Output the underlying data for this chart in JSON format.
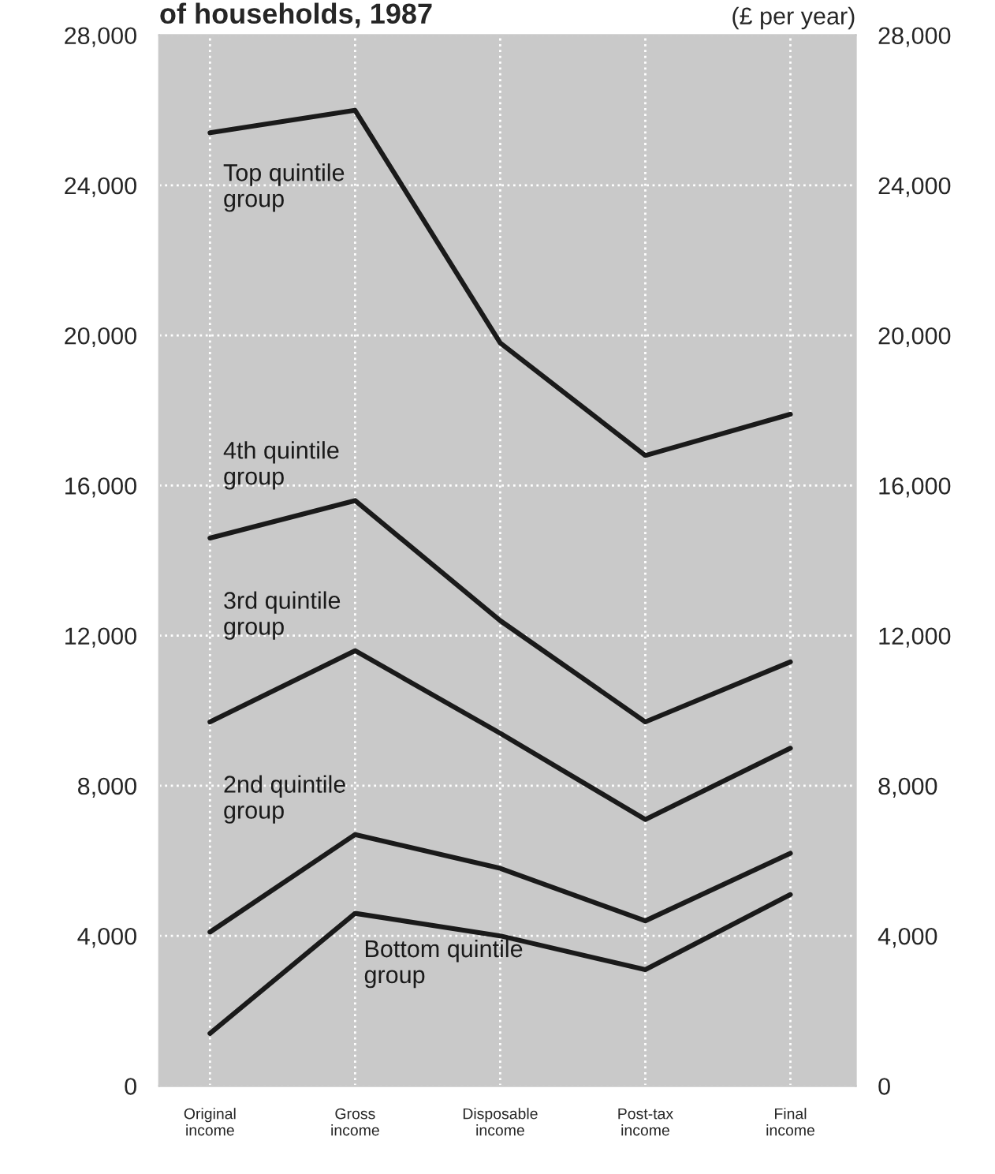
{
  "chart_data": {
    "type": "line",
    "title": "of households, 1987",
    "annotations": [
      "(£ per year)"
    ],
    "categories": [
      "Original\nincome",
      "Gross\nincome",
      "Disposable\nincome",
      "Post-tax\nincome",
      "Final\nincome"
    ],
    "series": [
      {
        "name": "Top quintile\ngroup",
        "color": "#1a1a1a",
        "values": [
          25400,
          26000,
          19800,
          16800,
          17900
        ]
      },
      {
        "name": "4th quintile\ngroup",
        "color": "#1a1a1a",
        "values": [
          14600,
          15600,
          12400,
          9700,
          11300
        ]
      },
      {
        "name": "3rd quintile\ngroup",
        "color": "#1a1a1a",
        "values": [
          9700,
          11600,
          9400,
          7100,
          9000
        ]
      },
      {
        "name": "2nd quintile\ngroup",
        "color": "#1a1a1a",
        "values": [
          4100,
          6700,
          5800,
          4400,
          6200
        ]
      },
      {
        "name": "Bottom quintile\ngroup",
        "color": "#1a1a1a",
        "values": [
          1400,
          4600,
          4000,
          3100,
          5100
        ]
      }
    ],
    "ylim": [
      0,
      28000
    ],
    "yticks": [
      {
        "value": 0,
        "label": "0"
      },
      {
        "value": 4000,
        "label": "4,000"
      },
      {
        "value": 8000,
        "label": "8,000"
      },
      {
        "value": 12000,
        "label": "12,000"
      },
      {
        "value": 16000,
        "label": "16,000"
      },
      {
        "value": 20000,
        "label": "20,000"
      },
      {
        "value": 24000,
        "label": "24,000"
      },
      {
        "value": 28000,
        "label": "28,000"
      }
    ],
    "y2lim": [
      0,
      28000
    ],
    "y2ticks": [
      {
        "value": 0,
        "label": "0"
      },
      {
        "value": 4000,
        "label": "4,000"
      },
      {
        "value": 8000,
        "label": "8,000"
      },
      {
        "value": 12000,
        "label": "12,000"
      },
      {
        "value": 16000,
        "label": "16,000"
      },
      {
        "value": 20000,
        "label": "20,000"
      },
      {
        "value": 24000,
        "label": "24,000"
      },
      {
        "value": 28000,
        "label": "28,000"
      }
    ],
    "grid": true,
    "legend": false,
    "marker": "none",
    "line_style": "solid"
  }
}
